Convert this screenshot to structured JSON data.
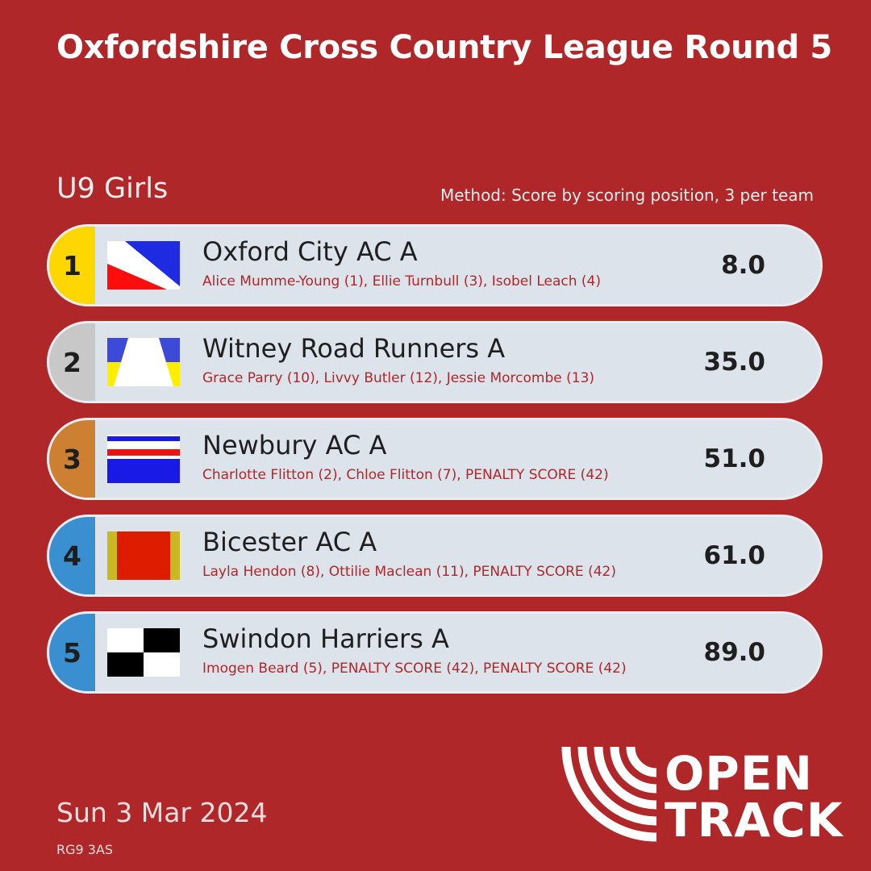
{
  "header": {
    "title": "Oxfordshire Cross Country League Round 5",
    "category": "U9 Girls",
    "method": "Method: Score by scoring position, 3 per team"
  },
  "results": [
    {
      "position": "1",
      "team": "Oxford City AC A",
      "members": "Alice Mumme-Young (1), Ellie Turnbull (3), Isobel Leach (4)",
      "score": "8.0",
      "badge_color": "#ffd700",
      "flag_icon": "oxford-city-flag-icon"
    },
    {
      "position": "2",
      "team": "Witney Road Runners A",
      "members": "Grace Parry (10), Livvy Butler (12), Jessie Morcombe (13)",
      "score": "35.0",
      "badge_color": "#c8c8c8",
      "flag_icon": "witney-flag-icon"
    },
    {
      "position": "3",
      "team": "Newbury AC A",
      "members": "Charlotte Flitton (2), Chloe Flitton (7), PENALTY SCORE (42)",
      "score": "51.0",
      "badge_color": "#cd7f32",
      "flag_icon": "newbury-flag-icon"
    },
    {
      "position": "4",
      "team": "Bicester AC A",
      "members": "Layla Hendon (8), Ottilie Maclean (11), PENALTY SCORE (42)",
      "score": "61.0",
      "badge_color": "#3a8fd1",
      "flag_icon": "bicester-flag-icon"
    },
    {
      "position": "5",
      "team": "Swindon Harriers A",
      "members": "Imogen Beard (5), PENALTY SCORE (42), PENALTY SCORE (42)",
      "score": "89.0",
      "badge_color": "#3a8fd1",
      "flag_icon": "swindon-flag-icon"
    }
  ],
  "footer": {
    "date": "Sun 3 Mar 2024",
    "postcode": "RG9 3AS",
    "logo_line1": "OPEN",
    "logo_line2": "TRACK"
  },
  "colors": {
    "background": "#b0272a",
    "row_background": "#dde3ea",
    "members_text": "#b0272a"
  }
}
